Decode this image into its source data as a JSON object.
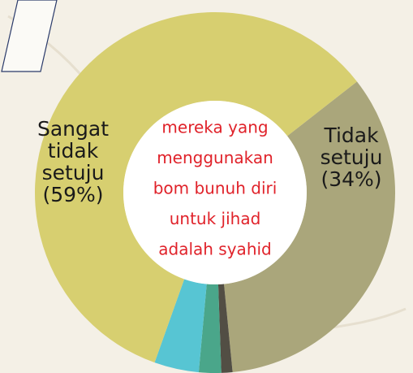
{
  "chart_data": {
    "type": "donut",
    "labels": [
      [
        "Tidak",
        "setuju"
      ],
      null,
      null,
      null,
      [
        "Sangat",
        "tidak",
        "setuju"
      ]
    ],
    "values": [
      34,
      1,
      2,
      4,
      59
    ],
    "value_labels": [
      "(34%)",
      null,
      null,
      null,
      "(59%)"
    ],
    "colors": [
      "#aaa67b",
      "#524e44",
      "#4aa68a",
      "#57c5d3",
      "#d7cf70"
    ],
    "center_text": [
      "mereka yang",
      "menggunakan",
      "bom bunuh diri",
      "untuk jihad",
      "adalah syahid"
    ]
  }
}
